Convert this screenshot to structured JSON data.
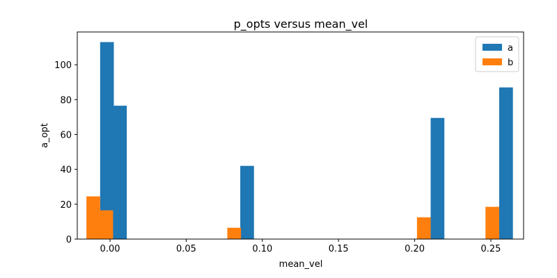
{
  "chart_data": {
    "type": "bar",
    "title": "p_opts versus mean_vel",
    "xlabel": "mean_vel",
    "ylabel": "a_opt",
    "xlim": [
      -0.0215,
      0.2715
    ],
    "ylim": [
      0,
      118.8
    ],
    "xticks": [
      0.0,
      0.05,
      0.1,
      0.15,
      0.2,
      0.25
    ],
    "xtick_labels": [
      "0.00",
      "0.05",
      "0.10",
      "0.15",
      "0.20",
      "0.25"
    ],
    "yticks": [
      0,
      20,
      40,
      60,
      80,
      100
    ],
    "ytick_labels": [
      "0",
      "20",
      "40",
      "60",
      "80",
      "100"
    ],
    "bar_width": 0.009,
    "legend_position": "top-right",
    "series": [
      {
        "name": "a",
        "color": "#1f77b4",
        "bars": [
          {
            "x": -0.002,
            "value": 113
          },
          {
            "x": 0.0065,
            "value": 76.5
          },
          {
            "x": 0.09,
            "value": 42
          },
          {
            "x": 0.215,
            "value": 69.5
          },
          {
            "x": 0.26,
            "value": 87
          }
        ]
      },
      {
        "name": "b",
        "color": "#ff7f0e",
        "bars": [
          {
            "x": -0.011,
            "value": 24.5
          },
          {
            "x": -0.0025,
            "value": 16.5
          },
          {
            "x": 0.0815,
            "value": 6.5
          },
          {
            "x": 0.206,
            "value": 12.5
          },
          {
            "x": 0.251,
            "value": 18.5
          }
        ]
      }
    ]
  }
}
